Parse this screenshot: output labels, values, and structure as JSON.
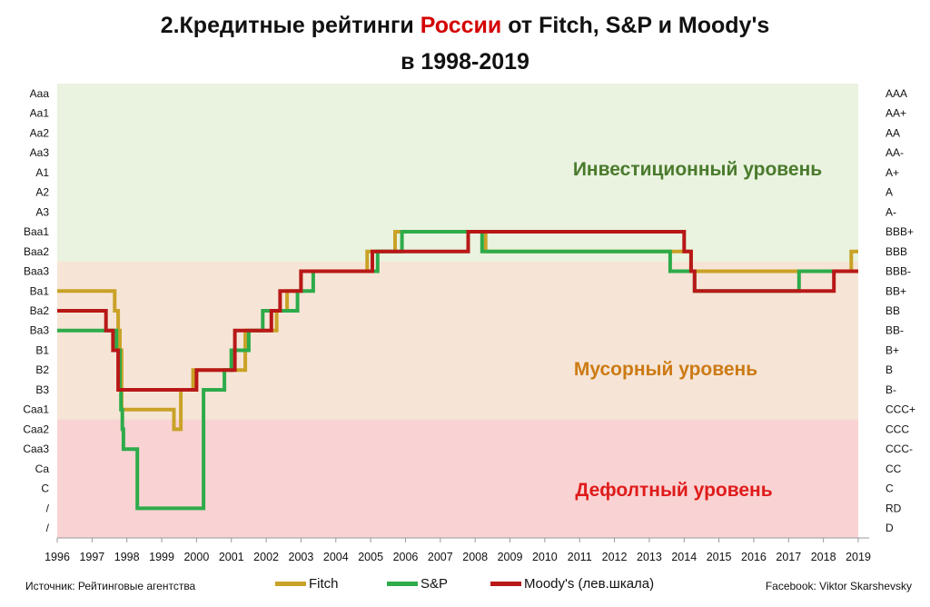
{
  "title": {
    "line1_part1": "2.Кредитные рейтинги ",
    "line1_highlight": "России",
    "line1_part2": " от Fitch, S&P и Moody's",
    "line2": "в 1998-2019"
  },
  "source": "Источник: Рейтинговые агентства",
  "credit": "Facebook: Viktor Skarshevsky",
  "chart_data": {
    "type": "line",
    "step": true,
    "x_ticks": [
      1996,
      1997,
      1998,
      1999,
      2000,
      2001,
      2002,
      2003,
      2004,
      2005,
      2006,
      2007,
      2008,
      2009,
      2010,
      2011,
      2012,
      2013,
      2014,
      2015,
      2016,
      2017,
      2018,
      2019
    ],
    "xlim": [
      1996,
      2019
    ],
    "y_left_labels": [
      "Aaa",
      "Aa1",
      "Aa2",
      "Aa3",
      "A1",
      "A2",
      "A3",
      "Baa1",
      "Baa2",
      "Baa3",
      "Ba1",
      "Ba2",
      "Ba3",
      "B1",
      "B2",
      "B3",
      "Caa1",
      "Caa2",
      "Caa3",
      "Ca",
      "C",
      "/",
      "/"
    ],
    "y_right_labels": [
      "AAA",
      "AA+",
      "AA",
      "AA-",
      "A+",
      "A",
      "A-",
      "BBB+",
      "BBB",
      "BBB-",
      "BB+",
      "BB",
      "BB-",
      "B+",
      "B",
      "B-",
      "CCC+",
      "CCC",
      "CCC-",
      "CC",
      "C",
      "RD",
      "D"
    ],
    "zones": [
      {
        "label": "Инвестиционный уровень",
        "from": 0,
        "to": 9,
        "fill": "#e9f3df",
        "text_color": "#4a7a2c"
      },
      {
        "label": "Мусорный уровень",
        "from": 9,
        "to": 17,
        "fill": "#f6e5d6",
        "text_color": "#cc7a14"
      },
      {
        "label": "Дефолтный уровень",
        "from": 17,
        "to": 22,
        "fill": "#f9d3d3",
        "text_color": "#e01b1b"
      }
    ],
    "series": [
      {
        "name": "Fitch",
        "color": "#c9a227",
        "x": [
          1996,
          1997.65,
          1997.75,
          1997.8,
          1997.85,
          1999.35,
          1999.55,
          1999.9,
          2000.1,
          2001.4,
          2001.6,
          2002.3,
          2002.6,
          2003.0,
          2004.05,
          2004.9,
          2005.7,
          2008.3,
          2013.8,
          2014.2,
          2018.8,
          2019
        ],
        "y": [
          10,
          11,
          12,
          13,
          16,
          17,
          15,
          14,
          14,
          12,
          12,
          11,
          10,
          9,
          9,
          8,
          7,
          8,
          8,
          9,
          8,
          8
        ]
      },
      {
        "name": "S&P",
        "color": "#2eab4a",
        "x": [
          1996,
          1997.7,
          1997.8,
          1997.83,
          1997.87,
          1997.9,
          1998.2,
          1998.3,
          1999.25,
          2000.2,
          2000.8,
          2001.0,
          2001.5,
          2001.9,
          2002.6,
          2002.9,
          2003.35,
          2005.2,
          2005.9,
          2008.2,
          2013.6,
          2014.3,
          2017.3,
          2018.8,
          2019
        ],
        "y": [
          12,
          13,
          15,
          16,
          17,
          18,
          18,
          21,
          21,
          15,
          14,
          13,
          12,
          11,
          11,
          10,
          9,
          8,
          7,
          8,
          9,
          10,
          9,
          9,
          9
        ]
      },
      {
        "name": "Moody's (лев.шкала)",
        "color": "#b81818",
        "x": [
          1996,
          1997.4,
          1997.6,
          1997.75,
          1997.85,
          2000.0,
          2000.15,
          2001.1,
          2001.3,
          2002.15,
          2002.4,
          2003.0,
          2005.05,
          2007.8,
          2014.0,
          2014.2,
          2014.3,
          2018.3,
          2019
        ],
        "y": [
          11,
          12,
          13,
          15,
          15,
          14,
          14,
          12,
          12,
          11,
          10,
          9,
          8,
          7,
          8,
          9,
          10,
          9,
          9
        ]
      }
    ]
  }
}
